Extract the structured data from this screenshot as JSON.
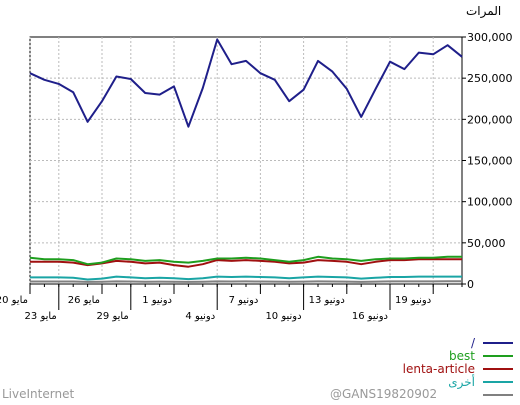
{
  "chart_data": {
    "type": "line",
    "ylabel": "المرات",
    "ylim": [
      0,
      300000
    ],
    "y_ticks": [
      "300,000",
      "250,000",
      "200,000",
      "150,000",
      "100,000",
      "50,000",
      "0"
    ],
    "y_tick_values": [
      300000,
      250000,
      200000,
      150000,
      100000,
      50000,
      0
    ],
    "x_labels_top": [
      "19 دونيو",
      "13 دونيو",
      "7 دونيو",
      "1 دونيو",
      "26 مايو",
      "20 مايو"
    ],
    "x_labels_top_idx": [
      28,
      22,
      16,
      10,
      5,
      0
    ],
    "x_labels_bottom": [
      "16 دونيو",
      "10 دونيو",
      "4 دونيو",
      "29 مايو",
      "23 مايو"
    ],
    "x_labels_bottom_idx": [
      25,
      19,
      13,
      7,
      2
    ],
    "n_points": 31,
    "series": [
      {
        "name": "/",
        "color": "#1f1f8a",
        "values": [
          256000,
          248000,
          243000,
          233000,
          197000,
          222000,
          252000,
          249000,
          232000,
          230000,
          240000,
          191000,
          238000,
          297000,
          267000,
          271000,
          256000,
          248000,
          222000,
          236000,
          271000,
          258000,
          237000,
          203000,
          237000,
          270000,
          261000,
          281000,
          279000,
          290000,
          276000
        ]
      },
      {
        "name": "best",
        "color": "#1e9e1e",
        "values": [
          32000,
          30000,
          30000,
          29000,
          24000,
          26000,
          31000,
          30000,
          28000,
          29000,
          27000,
          26000,
          28000,
          31000,
          31000,
          32000,
          31000,
          29000,
          27000,
          29000,
          33000,
          31000,
          30000,
          28000,
          30000,
          31000,
          31000,
          32000,
          32000,
          33000,
          33000
        ]
      },
      {
        "name": "lenta-article",
        "color": "#a01010",
        "values": [
          27000,
          27000,
          27000,
          26000,
          23000,
          25000,
          28000,
          27000,
          25000,
          26000,
          23000,
          21000,
          24000,
          29000,
          28000,
          29000,
          28000,
          27000,
          25000,
          26000,
          29000,
          28000,
          27000,
          24000,
          27000,
          29000,
          29000,
          30000,
          30000,
          30000,
          30000
        ]
      },
      {
        "name": "أخرى",
        "color": "#1aa5a5",
        "values": [
          8000,
          8000,
          8000,
          7500,
          5500,
          6500,
          9000,
          8000,
          7000,
          7500,
          7000,
          6000,
          7000,
          9000,
          8500,
          9000,
          8500,
          8000,
          7000,
          8000,
          9000,
          8500,
          8000,
          6500,
          7500,
          8500,
          8500,
          9000,
          9000,
          9000,
          9000
        ]
      },
      {
        "name": "",
        "color": "#808080",
        "values": [
          3000,
          3000,
          3000,
          3000,
          2500,
          2800,
          3200,
          3000,
          2800,
          2900,
          2700,
          2500,
          2800,
          3200,
          3000,
          3100,
          3000,
          2900,
          2700,
          2900,
          3200,
          3000,
          2900,
          2600,
          2900,
          3100,
          3100,
          3200,
          3200,
          3300,
          3300
        ]
      }
    ]
  },
  "legend": [
    {
      "label": "/",
      "color": "#1f1f8a"
    },
    {
      "label": "best",
      "color": "#1e9e1e"
    },
    {
      "label": "lenta-article",
      "color": "#a01010"
    },
    {
      "label": "أخرى",
      "color": "#1aa5a5"
    },
    {
      "label": "",
      "color": "#808080"
    }
  ],
  "footer": {
    "left": "LiveInternet",
    "right": "@GANS19820902"
  }
}
